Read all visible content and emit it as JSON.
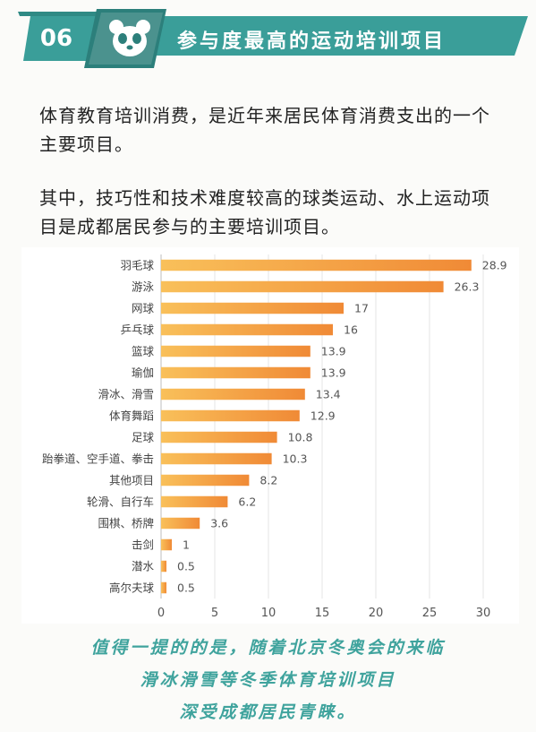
{
  "header": {
    "badge_number": "06",
    "title": "参与度最高的运动培训项目",
    "panda_icon": "panda-icon",
    "accent_color": "#3a9e99"
  },
  "intro": {
    "paragraph1": "体育教育培训消费，是近年来居民体育消费支出的一个主要项目。",
    "paragraph2": "其中，技巧性和技术难度较高的球类运动、水上运动项目是成都居民参与的主要培训项目。"
  },
  "chart_data": {
    "type": "bar",
    "orientation": "horizontal",
    "categories": [
      "羽毛球",
      "游泳",
      "网球",
      "乒乓球",
      "篮球",
      "瑜伽",
      "滑冰、滑雪",
      "体育舞蹈",
      "足球",
      "跆拳道、空手道、拳击",
      "其他项目",
      "轮滑、自行车",
      "围棋、桥牌",
      "击剑",
      "潜水",
      "高尔夫球"
    ],
    "values": [
      28.9,
      26.3,
      17,
      16,
      13.9,
      13.9,
      13.4,
      12.9,
      10.8,
      10.3,
      8.2,
      6.2,
      3.6,
      1,
      0.5,
      0.5
    ],
    "value_labels": [
      "28.9",
      "26.3",
      "17",
      "16",
      "13.9",
      "13.9",
      "13.4",
      "12.9",
      "10.8",
      "10.3",
      "8.2",
      "6.2",
      "3.6",
      "1",
      "0.5",
      "0.5"
    ],
    "xlim": [
      0,
      30
    ],
    "xticks": [
      "0",
      "5",
      "10",
      "15",
      "20",
      "25",
      "30"
    ],
    "grid": true,
    "bar_color_start": "#f9c05a",
    "bar_color_end": "#f08a36"
  },
  "footer": {
    "line1": "值得一提的的是，随着北京冬奥会的来临",
    "line2": "滑冰滑雪等冬季体育培训项目",
    "line3": "深受成都居民青睐。"
  }
}
